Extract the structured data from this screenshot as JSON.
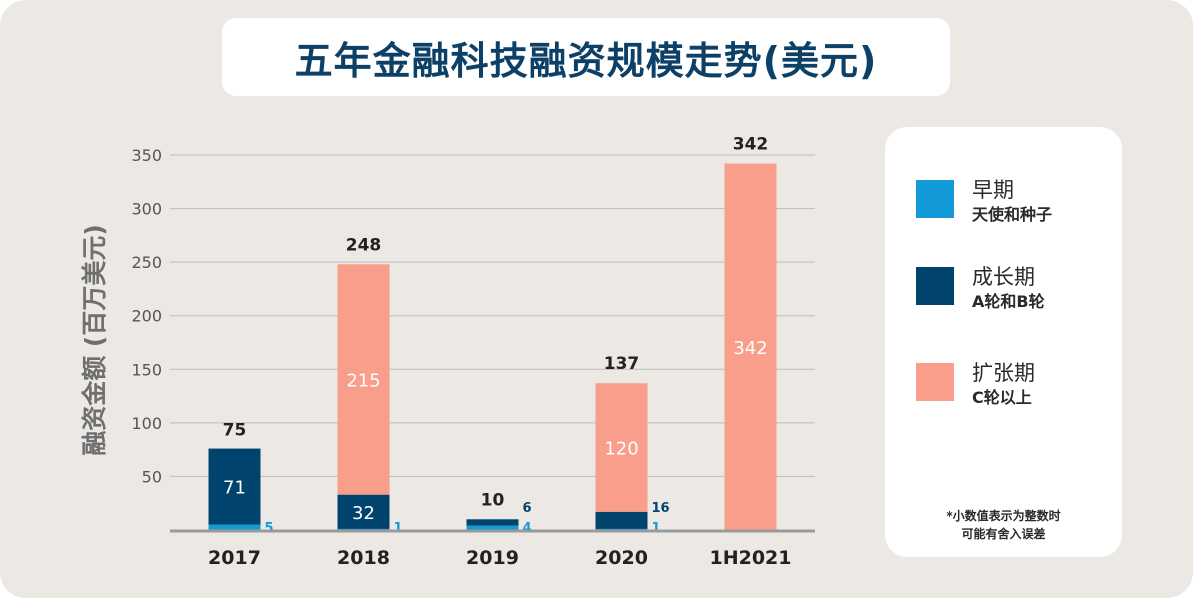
{
  "chart_data": {
    "type": "bar",
    "stacked": true,
    "title": "五年金融科技融资规模走势(美元)",
    "ylabel": "融资金额 (百万美元)",
    "xlabel": "",
    "ylim": [
      0,
      350
    ],
    "yticks": [
      50,
      100,
      150,
      200,
      250,
      300,
      350
    ],
    "grid": true,
    "legend_placement": "right",
    "categories": [
      "2017",
      "2018",
      "2019",
      "2020",
      "1H2021"
    ],
    "series": [
      {
        "name": "早期",
        "subtitle": "天使和种子",
        "color": "#139bd7",
        "values": [
          5,
          1,
          4,
          1,
          0
        ]
      },
      {
        "name": "成长期",
        "subtitle": "A轮和B轮",
        "color": "#00446e",
        "values": [
          71,
          32,
          6,
          16,
          0
        ]
      },
      {
        "name": "扩张期",
        "subtitle": "C轮以上",
        "color": "#f89e8a",
        "values": [
          0,
          215,
          0,
          120,
          342
        ]
      }
    ],
    "totals": [
      75,
      248,
      10,
      137,
      342
    ],
    "note": [
      "*小数值表示为整数时",
      "可能有舍入误差"
    ]
  }
}
